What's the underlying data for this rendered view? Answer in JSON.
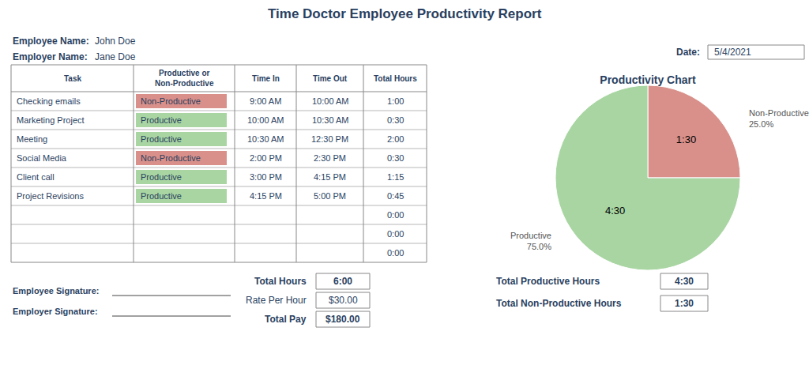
{
  "chart_data": {
    "type": "pie",
    "title": "Productivity Chart",
    "categories": [
      "Non-Productive",
      "Productive"
    ],
    "values": [
      25.0,
      75.0
    ],
    "value_labels": [
      "25.0%",
      "75.0%"
    ],
    "colors": [
      "#d9908a",
      "#a8d5a2"
    ],
    "annotations": [
      "Time Doctor Employee Productivity Report",
      "Employee Name:",
      "John Doe",
      "Employer Name:",
      "Jane Doe",
      "Date:",
      "5/4/2021",
      "Task",
      "Productive or\nNon-Productive",
      "Time In",
      "Time Out",
      "Total Hours",
      "Checking emails",
      "Non-Productive",
      "9:00 AM",
      "10:00 AM",
      "1:00",
      "Marketing Project",
      "Productive",
      "10:00 AM",
      "10:30 AM",
      "0:30",
      "Meeting",
      "Productive",
      "10:30 AM",
      "12:30 PM",
      "2:00",
      "Social Media",
      "Non-Productive",
      "2:00 PM",
      "2:30 PM",
      "0:30",
      "Client call",
      "Productive",
      "3:00 PM",
      "4:15 PM",
      "1:15",
      "Project Revisions",
      "Productive",
      "4:15 PM",
      "5:00 PM",
      "0:45",
      null,
      null,
      null,
      null,
      "0:00",
      null,
      null,
      null,
      null,
      "0:00",
      null,
      null,
      null,
      null,
      "0:00",
      "Total Hours",
      "6:00",
      "Rate Per Hour",
      "$30.00",
      "Total Pay",
      "$180.00",
      "Employee Signature:",
      "Employer Signature:",
      "Total Productive Hours",
      "4:30",
      "Total Non-Productive Hours",
      "1:30",
      "1:30",
      "4:30"
    ]
  }
}
